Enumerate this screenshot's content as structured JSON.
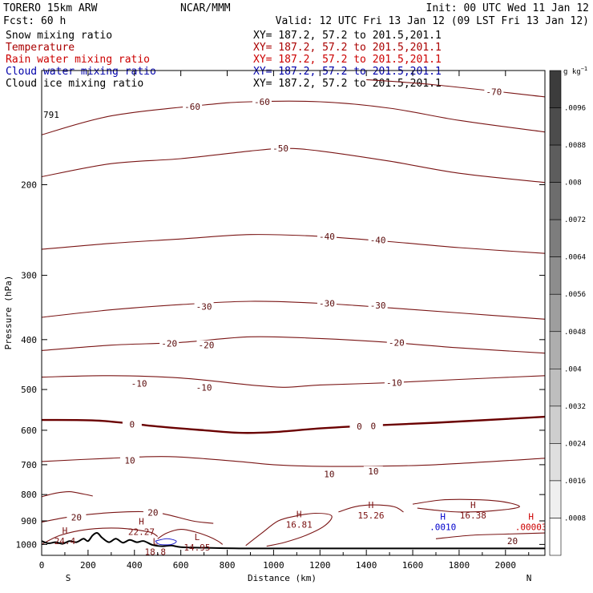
{
  "header": {
    "model": "TORERO  15km ARW",
    "org": "NCAR/MMM",
    "init": "Init: 00 UTC Wed 11 Jan 12",
    "fcst": "Fcst:   60 h",
    "valid": "Valid: 12 UTC Fri 13 Jan 12 (09 LST Fri 13 Jan 12)"
  },
  "fields": [
    {
      "name": "Snow mixing ratio",
      "xy": "XY= 187.2, 57.2 to 201.5,201.1",
      "color": "#000000",
      "xycolor": "#000000"
    },
    {
      "name": "Temperature",
      "xy": "XY= 187.2, 57.2 to 201.5,201.1",
      "color": "#aa0000",
      "xycolor": "#aa0000"
    },
    {
      "name": "Rain water mixing ratio",
      "xy": "XY= 187.2, 57.2 to 201.5,201.1",
      "color": "#cc0000",
      "xycolor": "#cc0000"
    },
    {
      "name": "Cloud water mixing ratio",
      "xy": "XY= 187.2, 57.2 to 201.5,201.1",
      "color": "#0000aa",
      "xycolor": "#0000aa"
    },
    {
      "name": "Cloud ice mixing ratio",
      "xy": "XY= 187.2, 57.2 to 201.5,201.1",
      "color": "#000000",
      "xycolor": "#000000"
    }
  ],
  "chart_data": {
    "type": "contour cross-section",
    "xlabel": "Distance (km)",
    "ylabel": "Pressure (hPa)",
    "xlim": [
      0,
      2170
    ],
    "ylim": [
      120,
      1050
    ],
    "y_scale": "log",
    "xticks": [
      0,
      200,
      400,
      600,
      800,
      1000,
      1200,
      1400,
      1600,
      1800,
      2000
    ],
    "yticks": [
      200,
      300,
      400,
      500,
      600,
      700,
      800,
      900,
      1000
    ],
    "x_endpoints": {
      "left": "S",
      "right": "N"
    },
    "colorbar": {
      "units": "g kg-1",
      "ticks": [
        ".0008",
        ".0016",
        ".0024",
        ".0032",
        ".004",
        ".0048",
        ".0056",
        ".0064",
        ".0072",
        ".008",
        ".0088",
        ".0096"
      ]
    },
    "temperature_contours": [
      {
        "level": -70,
        "points": [
          [
            1400,
            125
          ],
          [
            1700,
            128
          ],
          [
            2170,
            135
          ]
        ],
        "labels": [
          [
            1950,
            132
          ]
        ]
      },
      {
        "level": -60,
        "points": [
          [
            0,
            160
          ],
          [
            300,
            147
          ],
          [
            700,
            140
          ],
          [
            900,
            138
          ],
          [
            1200,
            138
          ],
          [
            1500,
            142
          ],
          [
            1800,
            150
          ],
          [
            2170,
            158
          ]
        ],
        "labels": [
          [
            650,
            141
          ],
          [
            950,
            138
          ]
        ]
      },
      {
        "level": -50,
        "points": [
          [
            0,
            193
          ],
          [
            300,
            182
          ],
          [
            600,
            178
          ],
          [
            900,
            172
          ],
          [
            1050,
            170
          ],
          [
            1200,
            172
          ],
          [
            1500,
            180
          ],
          [
            1800,
            190
          ],
          [
            2170,
            198
          ]
        ],
        "labels": [
          [
            1030,
            170
          ]
        ]
      },
      {
        "level": -40,
        "points": [
          [
            0,
            267
          ],
          [
            300,
            260
          ],
          [
            600,
            255
          ],
          [
            900,
            250
          ],
          [
            1200,
            252
          ],
          [
            1500,
            258
          ],
          [
            1800,
            265
          ],
          [
            2170,
            272
          ]
        ],
        "labels": [
          [
            1230,
            252
          ],
          [
            1450,
            256
          ]
        ]
      },
      {
        "level": -30,
        "points": [
          [
            0,
            362
          ],
          [
            300,
            350
          ],
          [
            600,
            342
          ],
          [
            900,
            337
          ],
          [
            1200,
            340
          ],
          [
            1500,
            347
          ],
          [
            1800,
            355
          ],
          [
            2170,
            365
          ]
        ],
        "labels": [
          [
            700,
            345
          ],
          [
            1230,
            340
          ],
          [
            1450,
            343
          ]
        ]
      },
      {
        "level": -20,
        "points": [
          [
            0,
            420
          ],
          [
            300,
            410
          ],
          [
            600,
            405
          ],
          [
            900,
            395
          ],
          [
            1200,
            398
          ],
          [
            1500,
            405
          ],
          [
            1800,
            415
          ],
          [
            2170,
            425
          ]
        ],
        "labels": [
          [
            550,
            407
          ],
          [
            710,
            410
          ],
          [
            1530,
            405
          ]
        ]
      },
      {
        "level": -10,
        "points": [
          [
            0,
            473
          ],
          [
            300,
            470
          ],
          [
            600,
            475
          ],
          [
            900,
            490
          ],
          [
            1050,
            495
          ],
          [
            1200,
            490
          ],
          [
            1500,
            485
          ],
          [
            1800,
            478
          ],
          [
            2170,
            470
          ]
        ],
        "labels": [
          [
            420,
            487
          ],
          [
            700,
            495
          ],
          [
            1520,
            485
          ]
        ]
      },
      {
        "level": 0,
        "points": [
          [
            0,
            573
          ],
          [
            250,
            575
          ],
          [
            500,
            590
          ],
          [
            700,
            600
          ],
          [
            850,
            607
          ],
          [
            1000,
            605
          ],
          [
            1200,
            595
          ],
          [
            1400,
            588
          ],
          [
            1700,
            580
          ],
          [
            2170,
            565
          ]
        ],
        "labels": [
          [
            390,
            584
          ],
          [
            1370,
            590
          ],
          [
            1430,
            589
          ]
        ]
      },
      {
        "level": 10,
        "points": [
          [
            0,
            690
          ],
          [
            300,
            680
          ],
          [
            550,
            675
          ],
          [
            850,
            690
          ],
          [
            1000,
            700
          ],
          [
            1200,
            705
          ],
          [
            1400,
            705
          ],
          [
            1700,
            700
          ],
          [
            2170,
            680
          ]
        ],
        "labels": [
          [
            380,
            686
          ],
          [
            1240,
            730
          ],
          [
            1430,
            720
          ]
        ]
      },
      {
        "level": 20,
        "points": [
          [
            0,
            905
          ],
          [
            150,
            880
          ],
          [
            350,
            865
          ],
          [
            500,
            868
          ],
          [
            650,
            900
          ],
          [
            740,
            910
          ]
        ],
        "labels": [
          [
            150,
            885
          ],
          [
            480,
            867
          ],
          [
            2030,
            985
          ]
        ]
      }
    ],
    "extrema": [
      {
        "type": "H",
        "value": "24.4",
        "x": 100,
        "p": 953,
        "field": "Temperature"
      },
      {
        "type": "H",
        "value": "22.27",
        "x": 430,
        "p": 915,
        "field": "Temperature"
      },
      {
        "type": "L",
        "value": "14.95",
        "x": 670,
        "p": 980,
        "field": "Temperature"
      },
      {
        "type": "L",
        "value": "18.8",
        "x": 490,
        "p": 1000,
        "field": "Temperature"
      },
      {
        "type": "H",
        "value": "16.81",
        "x": 1110,
        "p": 885,
        "field": "Temperature"
      },
      {
        "type": "H",
        "value": "15.26",
        "x": 1420,
        "p": 850,
        "field": "Temperature"
      },
      {
        "type": "H",
        "value": "16.38",
        "x": 1860,
        "p": 850,
        "field": "Temperature"
      },
      {
        "type": "H",
        "value": ".0010",
        "x": 1730,
        "p": 895,
        "field": "Cloud water mixing ratio"
      },
      {
        "type": "H",
        "value": ".00003",
        "x": 2110,
        "p": 895,
        "field": "Rain water mixing ratio"
      }
    ],
    "terrain_surface_hpa": [
      [
        0,
        985
      ],
      [
        30,
        995
      ],
      [
        60,
        990
      ],
      [
        90,
        997
      ],
      [
        120,
        985
      ],
      [
        150,
        990
      ],
      [
        180,
        975
      ],
      [
        200,
        985
      ],
      [
        220,
        960
      ],
      [
        240,
        950
      ],
      [
        260,
        970
      ],
      [
        290,
        990
      ],
      [
        320,
        975
      ],
      [
        350,
        992
      ],
      [
        380,
        980
      ],
      [
        410,
        990
      ],
      [
        440,
        985
      ],
      [
        480,
        1003
      ],
      [
        520,
        1008
      ],
      [
        560,
        1005
      ],
      [
        600,
        1012
      ],
      [
        700,
        1015
      ],
      [
        900,
        1018
      ],
      [
        1500,
        1018
      ],
      [
        2170,
        1018
      ]
    ],
    "grid": false,
    "annotations": [
      "791"
    ]
  }
}
